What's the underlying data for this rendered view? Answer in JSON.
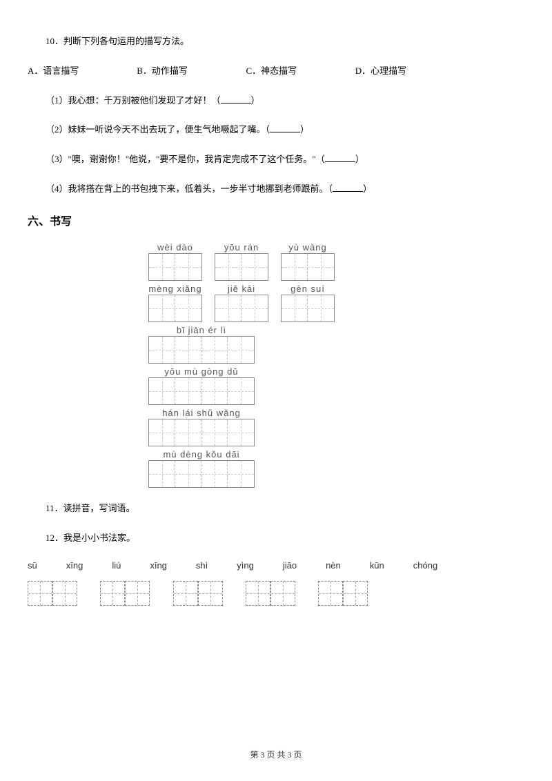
{
  "q10": {
    "prompt": "10．判断下列各句运用的描写方法。",
    "options": {
      "a": "A．语言描写",
      "b": "B．动作描写",
      "c": "C．神态描写",
      "d": "D．心理描写"
    },
    "sub1": "（1）我心想：千万别被他们发现了才好！（",
    "sub1_end": "）",
    "sub2": "（2）妹妹一听说今天不出去玩了，便生气地噘起了嘴。（",
    "sub2_end": "）",
    "sub3": "（3）\"噢，谢谢你！\"他说，\"要不是你，我肯定完成不了这个任务。\"（",
    "sub3_end": "）",
    "sub4": "（4）我将搭在背上的书包拽下来，低着头，一步半寸地挪到老师跟前。（",
    "sub4_end": "）"
  },
  "section6": "六、书写",
  "pinyin_rows": [
    [
      [
        "wèi",
        "dào"
      ],
      [
        "yōu",
        "rán"
      ],
      [
        "yù",
        "wàng"
      ]
    ],
    [
      [
        "mèng",
        "xiǎng"
      ],
      [
        "jiě",
        "kāi"
      ],
      [
        "gēn",
        "suí"
      ]
    ],
    [
      [
        "bǐ",
        "jiān",
        "ér",
        "lì"
      ]
    ],
    [
      [
        "yǒu",
        "mù",
        "gòng",
        "dǔ"
      ]
    ],
    [
      [
        "hán",
        "lái",
        "shǔ",
        "wǎng"
      ]
    ],
    [
      [
        "mù",
        "dèng",
        "kǒu",
        "dāi"
      ]
    ]
  ],
  "q11": "11．读拼音，写词语。",
  "q12": "12．我是小小书法家。",
  "bottom_pinyin": [
    "sū",
    "xīng",
    "liú",
    "xīng",
    "shì",
    "yìng",
    "jiāo",
    "nèn",
    "kūn",
    "chóng"
  ],
  "footer": "第 3 页 共 3 页",
  "colors": {
    "text": "#000000",
    "border": "#888888",
    "dash": "#bbbbbb",
    "bg": "#ffffff"
  }
}
